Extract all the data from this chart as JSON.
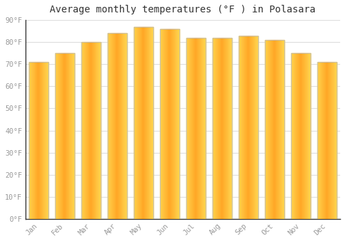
{
  "title": "Average monthly temperatures (°F ) in Polasara",
  "months": [
    "Jan",
    "Feb",
    "Mar",
    "Apr",
    "May",
    "Jun",
    "Jul",
    "Aug",
    "Sep",
    "Oct",
    "Nov",
    "Dec"
  ],
  "values": [
    71,
    75,
    80,
    84,
    87,
    86,
    82,
    82,
    83,
    81,
    75,
    71
  ],
  "bar_color_center": "#FFA726",
  "bar_color_edge_left": "#FFD54F",
  "bar_color_edge_right": "#FFD54F",
  "bar_outline_color": "#AAAAAA",
  "background_color": "#FFFFFF",
  "grid_color": "#DDDDDD",
  "ylim": [
    0,
    90
  ],
  "yticks": [
    0,
    10,
    20,
    30,
    40,
    50,
    60,
    70,
    80,
    90
  ],
  "ytick_labels": [
    "0°F",
    "10°F",
    "20°F",
    "30°F",
    "40°F",
    "50°F",
    "60°F",
    "70°F",
    "80°F",
    "90°F"
  ],
  "title_fontsize": 10,
  "tick_fontsize": 7.5,
  "font_family": "monospace",
  "bar_width": 0.75,
  "figsize": [
    5.0,
    3.5
  ],
  "dpi": 100
}
